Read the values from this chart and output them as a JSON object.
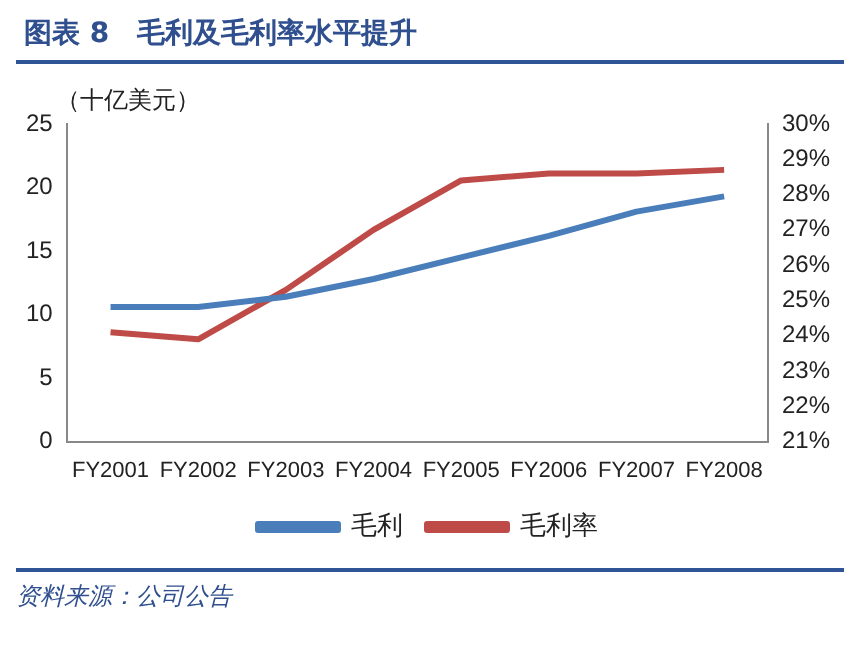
{
  "chart_data": {
    "type": "line",
    "title": "图表 8　毛利及毛利率水平提升",
    "ylabel": "（十亿美元）",
    "categories": [
      "FY2001",
      "FY2002",
      "FY2003",
      "FY2004",
      "FY2005",
      "FY2006",
      "FY2007",
      "FY2008"
    ],
    "series": [
      {
        "name": "毛利",
        "color": "#4a7ebb",
        "values": [
          10.6,
          10.6,
          11.4,
          12.8,
          14.5,
          16.2,
          18.1,
          19.3
        ]
      },
      {
        "name": "毛利率",
        "color": "#be4b48",
        "axis": "y2",
        "values": [
          24.1,
          23.9,
          25.3,
          27.0,
          28.4,
          28.6,
          28.6,
          28.7
        ]
      }
    ],
    "ylim": [
      0,
      25
    ],
    "yticks": [
      0,
      5,
      10,
      15,
      20,
      25
    ],
    "y2lim": [
      21,
      30
    ],
    "y2ticks": [
      {
        "value": 21,
        "label": "21%"
      },
      {
        "value": 22,
        "label": "22%"
      },
      {
        "value": 23,
        "label": "23%"
      },
      {
        "value": 24,
        "label": "24%"
      },
      {
        "value": 25,
        "label": "25%"
      },
      {
        "value": 26,
        "label": "26%"
      },
      {
        "value": 27,
        "label": "27%"
      },
      {
        "value": 28,
        "label": "28%"
      },
      {
        "value": 29,
        "label": "29%"
      },
      {
        "value": 30,
        "label": "30%"
      }
    ],
    "grid": false,
    "legend": "bottom",
    "marker": "none",
    "line_style": "solid",
    "annotations": [
      "资料来源：公司公告"
    ]
  }
}
